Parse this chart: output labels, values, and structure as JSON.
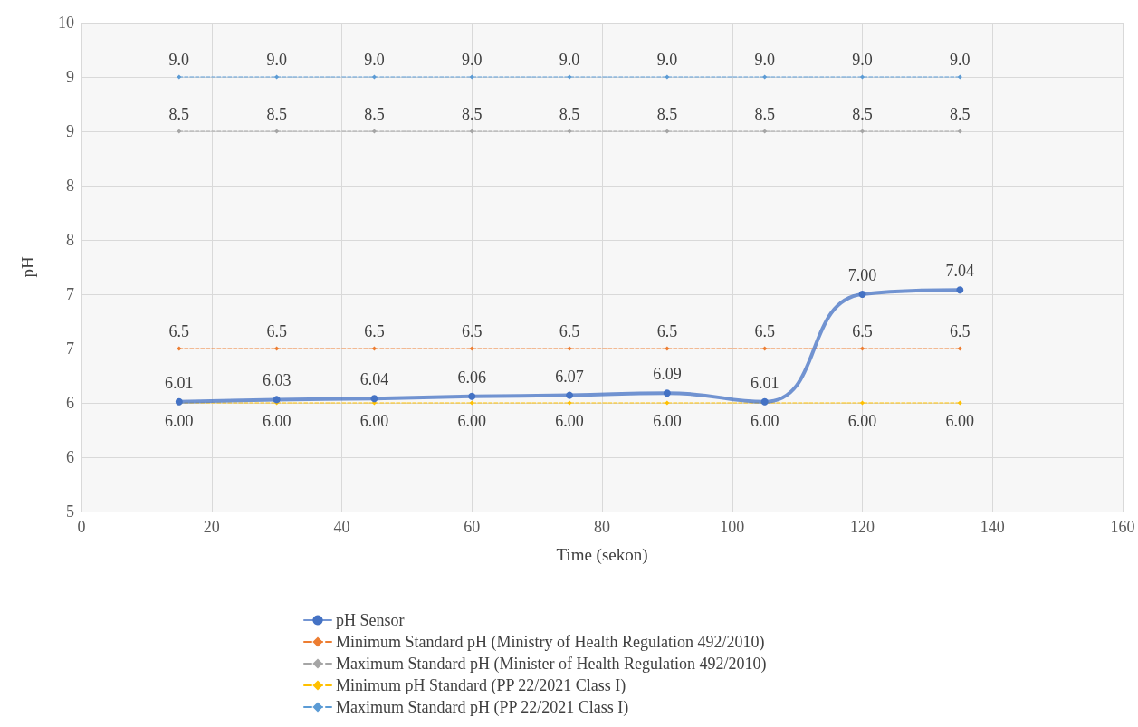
{
  "chart_data": {
    "type": "line",
    "xlabel": "Time (sekon)",
    "ylabel": "pH",
    "x": [
      15,
      30,
      45,
      60,
      75,
      90,
      105,
      120,
      135
    ],
    "xlim": [
      0,
      160
    ],
    "xticks": [
      0,
      20,
      40,
      60,
      80,
      100,
      120,
      140,
      160
    ],
    "ylim": [
      5,
      9.5
    ],
    "yticks": [
      5,
      {
        "value": 5.5,
        "label": "6"
      },
      6,
      {
        "value": 6.5,
        "label": "7"
      },
      7,
      {
        "value": 7.5,
        "label": "8"
      },
      8,
      {
        "value": 8.5,
        "label": "9"
      },
      9,
      {
        "value": 9.5,
        "label": "10"
      }
    ],
    "grid": true,
    "legend": "bottom",
    "series": [
      {
        "name": "pH Sensor",
        "color": "#4472c4",
        "marker": "circle",
        "line_style": "solid",
        "values": [
          6.01,
          6.03,
          6.04,
          6.06,
          6.07,
          6.09,
          6.01,
          7.0,
          7.04
        ],
        "value_labels": [
          "6.01",
          "6.03",
          "6.04",
          "6.06",
          "6.07",
          "6.09",
          "6.01",
          "7.00",
          "7.04"
        ]
      },
      {
        "name": "Minimum Standard pH (Ministry of Health Regulation 492/2010)",
        "color": "#ed7d31",
        "marker": "diamond",
        "line_style": "dashed",
        "values": [
          6.5,
          6.5,
          6.5,
          6.5,
          6.5,
          6.5,
          6.5,
          6.5,
          6.5
        ],
        "value_labels": [
          "6.5",
          "6.5",
          "6.5",
          "6.5",
          "6.5",
          "6.5",
          "6.5",
          "6.5",
          "6.5"
        ]
      },
      {
        "name": "Maximum Standard pH (Minister of Health Regulation 492/2010)",
        "color": "#a5a5a5",
        "marker": "diamond",
        "line_style": "dashed",
        "values": [
          8.5,
          8.5,
          8.5,
          8.5,
          8.5,
          8.5,
          8.5,
          8.5,
          8.5
        ],
        "value_labels": [
          "8.5",
          "8.5",
          "8.5",
          "8.5",
          "8.5",
          "8.5",
          "8.5",
          "8.5",
          "8.5"
        ]
      },
      {
        "name": "Minimum pH Standard (PP 22/2021 Class I)",
        "color": "#ffc000",
        "marker": "diamond",
        "line_style": "dashed",
        "values": [
          6.0,
          6.0,
          6.0,
          6.0,
          6.0,
          6.0,
          6.0,
          6.0,
          6.0
        ],
        "value_labels": [
          "6.00",
          "6.00",
          "6.00",
          "6.00",
          "6.00",
          "6.00",
          "6.00",
          "6.00",
          "6.00"
        ]
      },
      {
        "name": "Maximum Standard pH (PP 22/2021 Class I)",
        "color": "#5b9bd5",
        "marker": "diamond",
        "line_style": "dashed",
        "values": [
          9.0,
          9.0,
          9.0,
          9.0,
          9.0,
          9.0,
          9.0,
          9.0,
          9.0
        ],
        "value_labels": [
          "9.0",
          "9.0",
          "9.0",
          "9.0",
          "9.0",
          "9.0",
          "9.0",
          "9.0",
          "9.0"
        ]
      }
    ]
  }
}
